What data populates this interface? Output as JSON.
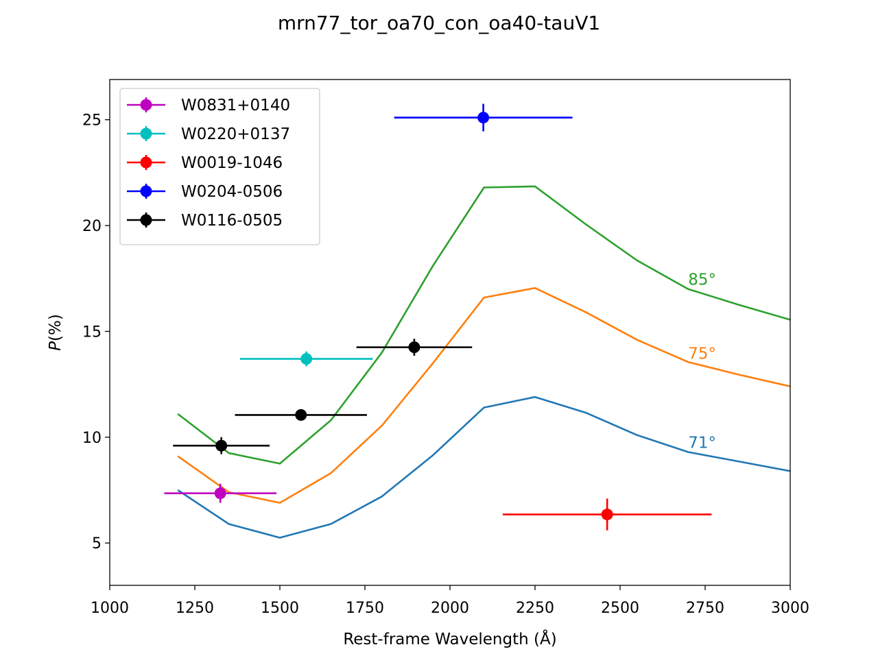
{
  "chart_data": {
    "type": "scatter",
    "title": "mrn77_tor_oa70_con_oa40-tauV1",
    "xlabel": "Rest-frame Wavelength (Å)",
    "ylabel": "P(%)",
    "xlim": [
      1000,
      3000
    ],
    "ylim": [
      3,
      26.9
    ],
    "xticks": [
      1000,
      1250,
      1500,
      1750,
      2000,
      2250,
      2500,
      2750,
      3000
    ],
    "yticks": [
      5,
      10,
      15,
      20,
      25
    ],
    "grid": false,
    "legend_position": "top-left",
    "model_curves": [
      {
        "label": "71°",
        "color": "#1f77b4",
        "label_pos": [
          2700,
          9.5
        ],
        "x": [
          1200,
          1350,
          1500,
          1650,
          1800,
          1950,
          2100,
          2250,
          2400,
          2550,
          2700,
          2850,
          3000
        ],
        "y": [
          7.5,
          5.9,
          5.25,
          5.9,
          7.2,
          9.15,
          11.4,
          11.9,
          11.15,
          10.1,
          9.3,
          8.85,
          8.4
        ]
      },
      {
        "label": "75°",
        "color": "#ff7f0e",
        "label_pos": [
          2700,
          13.7
        ],
        "x": [
          1200,
          1350,
          1500,
          1650,
          1800,
          1950,
          2100,
          2250,
          2400,
          2550,
          2700,
          2850,
          3000
        ],
        "y": [
          9.1,
          7.4,
          6.9,
          8.3,
          10.55,
          13.5,
          16.6,
          17.05,
          15.9,
          14.6,
          13.55,
          12.95,
          12.4
        ]
      },
      {
        "label": "85°",
        "color": "#2ca02c",
        "label_pos": [
          2700,
          17.2
        ],
        "x": [
          1200,
          1350,
          1500,
          1650,
          1800,
          1950,
          2100,
          2250,
          2400,
          2550,
          2700,
          2850,
          3000
        ],
        "y": [
          11.1,
          9.25,
          8.75,
          10.8,
          14.0,
          18.1,
          21.8,
          21.85,
          20.05,
          18.35,
          17.0,
          16.25,
          15.55
        ]
      }
    ],
    "series": [
      {
        "name": "W0831+0140",
        "color": "#bf00bf",
        "points": [
          {
            "x": 1325,
            "y": 7.35,
            "xerr": [
              165,
              165
            ],
            "yerr": [
              0.45,
              0.45
            ]
          }
        ]
      },
      {
        "name": "W0220+0137",
        "color": "#00bfbf",
        "points": [
          {
            "x": 1578,
            "y": 13.7,
            "xerr": [
              195,
              195
            ],
            "yerr": [
              0.35,
              0.35
            ]
          }
        ]
      },
      {
        "name": "W0019-1046",
        "color": "#ff0000",
        "points": [
          {
            "x": 2462,
            "y": 6.35,
            "xerr": [
              307,
              307
            ],
            "yerr": [
              0.75,
              0.75
            ]
          }
        ]
      },
      {
        "name": "W0204-0506",
        "color": "#0000ff",
        "points": [
          {
            "x": 2098,
            "y": 25.1,
            "xerr": [
              262,
              262
            ],
            "yerr": [
              0.65,
              0.65
            ]
          }
        ]
      },
      {
        "name": "W0116-0505",
        "color": "#000000",
        "points": [
          {
            "x": 1328,
            "y": 9.6,
            "xerr": [
              142,
              142
            ],
            "yerr": [
              0.4,
              0.4
            ]
          },
          {
            "x": 1562,
            "y": 11.05,
            "xerr": [
              194,
              194
            ],
            "yerr": [
              0.2,
              0.2
            ]
          },
          {
            "x": 1895,
            "y": 14.25,
            "xerr": [
              170,
              170
            ],
            "yerr": [
              0.4,
              0.4
            ]
          }
        ]
      }
    ]
  }
}
